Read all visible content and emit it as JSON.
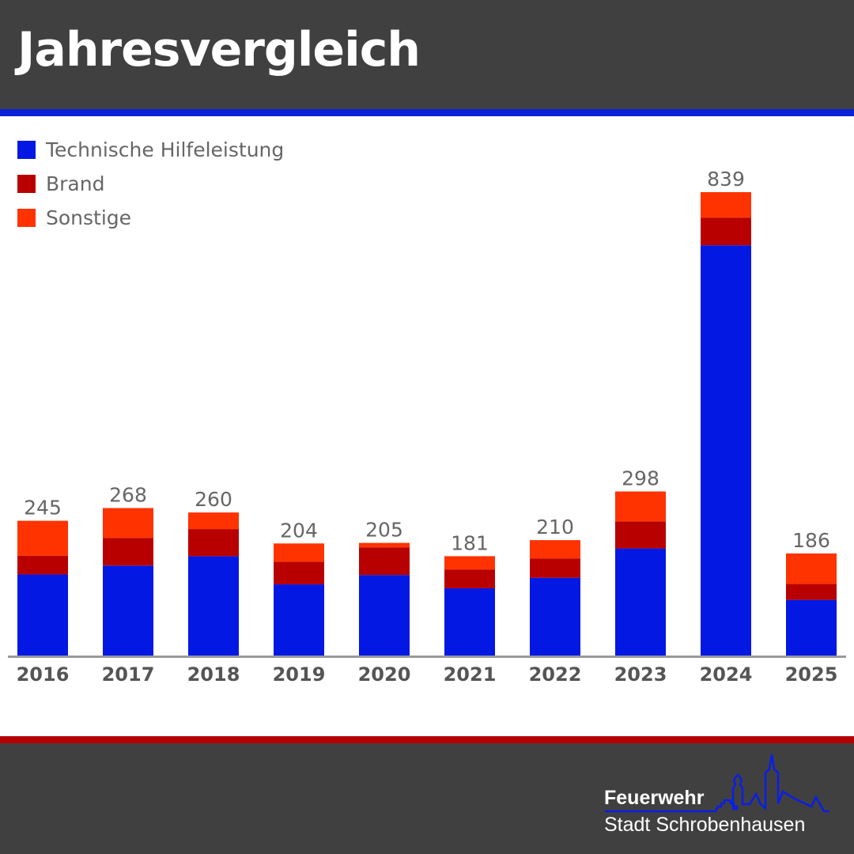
{
  "header": {
    "title": "Jahresvergleich"
  },
  "colors": {
    "header_bg": "#404040",
    "top_stripe": "#0a22d8",
    "bottom_stripe": "#b50000"
  },
  "chart_data": {
    "type": "bar",
    "stacked": true,
    "title": "",
    "xlabel": "",
    "ylabel": "",
    "ylim": [
      0,
      839
    ],
    "grid": false,
    "legend_position": "top-left",
    "categories": [
      "2016",
      "2017",
      "2018",
      "2019",
      "2020",
      "2021",
      "2022",
      "2023",
      "2024",
      "2025"
    ],
    "series": [
      {
        "name": "Technische Hilfeleistung",
        "color": "#0318e3",
        "values": [
          148,
          164,
          181,
          130,
          147,
          123,
          142,
          195,
          743,
          102
        ]
      },
      {
        "name": "Brand",
        "color": "#b80000",
        "values": [
          34,
          50,
          49,
          41,
          50,
          34,
          35,
          49,
          50,
          29
        ]
      },
      {
        "name": "Sonstige",
        "color": "#ff3300",
        "values": [
          63,
          54,
          30,
          33,
          8,
          24,
          33,
          54,
          46,
          55
        ]
      }
    ],
    "totals": [
      "245",
      "268",
      "260",
      "204",
      "205",
      "181",
      "210",
      "298",
      "839",
      "186"
    ]
  },
  "logo": {
    "line1": "Feuerwehr",
    "line2": "Stadt Schrobenhausen"
  }
}
